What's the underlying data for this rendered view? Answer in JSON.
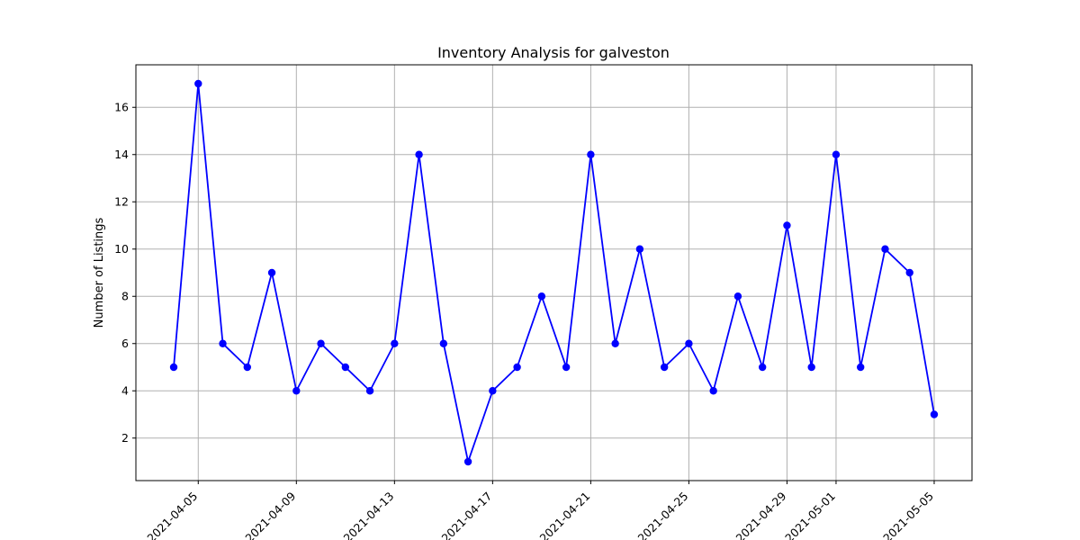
{
  "chart_data": {
    "type": "line",
    "title": "Inventory Analysis for galveston",
    "xlabel": "",
    "ylabel": "Number of Listings",
    "x": [
      "2021-04-04",
      "2021-04-05",
      "2021-04-06",
      "2021-04-07",
      "2021-04-08",
      "2021-04-09",
      "2021-04-10",
      "2021-04-11",
      "2021-04-12",
      "2021-04-13",
      "2021-04-14",
      "2021-04-15",
      "2021-04-16",
      "2021-04-17",
      "2021-04-18",
      "2021-04-19",
      "2021-04-20",
      "2021-04-21",
      "2021-04-22",
      "2021-04-23",
      "2021-04-24",
      "2021-04-25",
      "2021-04-26",
      "2021-04-27",
      "2021-04-28",
      "2021-04-29",
      "2021-04-30",
      "2021-05-01",
      "2021-05-02",
      "2021-05-03",
      "2021-05-04",
      "2021-05-05"
    ],
    "series": [
      {
        "values": [
          5,
          17,
          6,
          5,
          9,
          4,
          6,
          5,
          4,
          6,
          14,
          6,
          1,
          4,
          5,
          8,
          5,
          14,
          6,
          10,
          5,
          6,
          4,
          8,
          5,
          11,
          5,
          14,
          5,
          10,
          9,
          3
        ],
        "color": "#0000ff",
        "marker": "circle"
      }
    ],
    "xticks": [
      "2021-04-05",
      "2021-04-09",
      "2021-04-13",
      "2021-04-17",
      "2021-04-21",
      "2021-04-25",
      "2021-04-29",
      "2021-05-01",
      "2021-05-05"
    ],
    "yticks": [
      2,
      4,
      6,
      8,
      10,
      12,
      14,
      16
    ],
    "xlim": [
      "2021-04-02 11:00",
      "2021-05-06 13:00"
    ],
    "ylim": [
      0.2,
      17.8
    ],
    "grid": true,
    "legend": "none"
  }
}
